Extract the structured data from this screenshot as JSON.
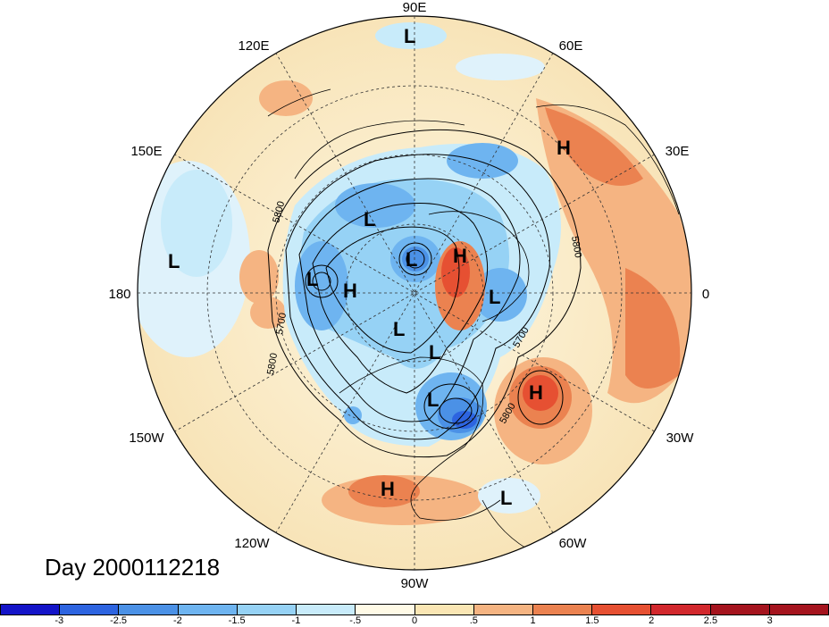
{
  "title": "Day 2000112218",
  "longitude_labels": {
    "lon_90e": "90E",
    "lon_60e": "60E",
    "lon_30e": "30E",
    "lon_0": "0",
    "lon_30w": "30W",
    "lon_60w": "60W",
    "lon_90w": "90W",
    "lon_120w": "120W",
    "lon_150w": "150W",
    "lon_180": "180",
    "lon_150e": "150E",
    "lon_120e": "120E"
  },
  "contour_labels": [
    "5800",
    "5700",
    "5800",
    "5800",
    "5700",
    "5800"
  ],
  "pressure_centers": [
    "L",
    "H",
    "L",
    "L",
    "H",
    "L",
    "H",
    "L",
    "L",
    "L",
    "L",
    "H",
    "L",
    "H",
    "L"
  ],
  "colorbar": {
    "colors": [
      "#1414c8",
      "#2d64e0",
      "#4b91e6",
      "#6eb4f0",
      "#96d2f5",
      "#c8ebfa",
      "#fffae6",
      "#fae6b4",
      "#f5b482",
      "#eb8250",
      "#e65032",
      "#d2282d",
      "#a5141e"
    ],
    "tick_labels": [
      "-3",
      "-2.5",
      "-2",
      "-1.5",
      "-1",
      "-.5",
      "0",
      ".5",
      "1",
      "1.5",
      "2",
      "2.5",
      "3"
    ]
  }
}
